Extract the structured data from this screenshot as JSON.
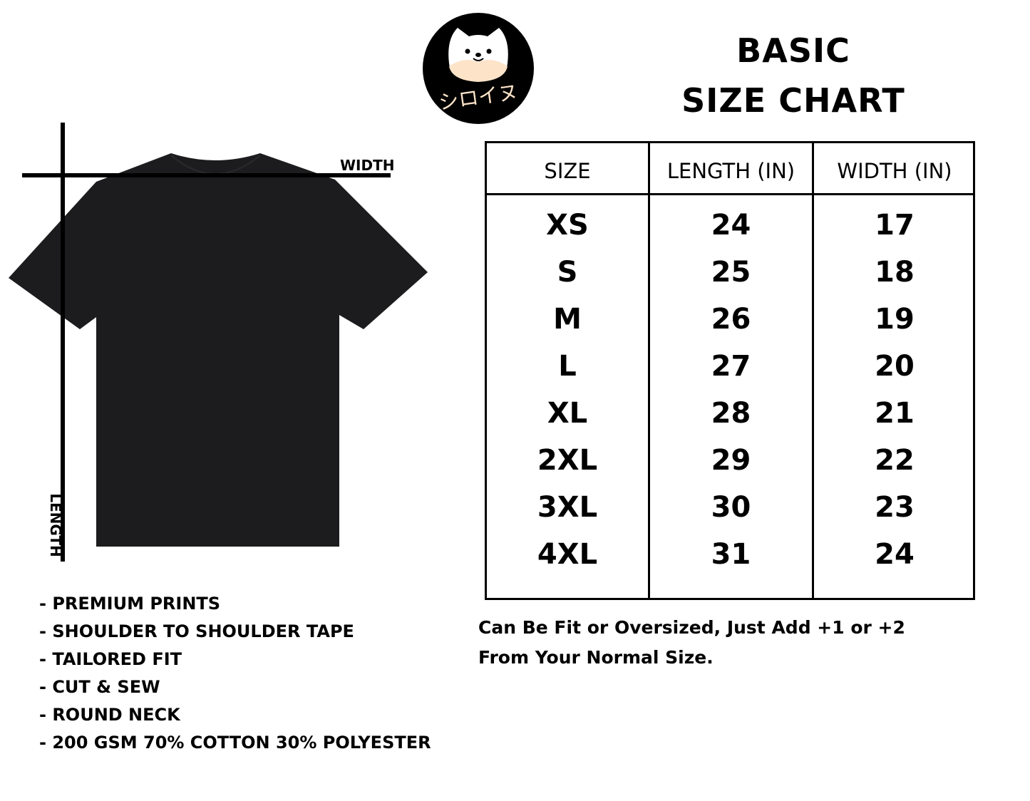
{
  "brand": {
    "logo_text": "シロイヌ",
    "logo_icon": "dog-face-icon"
  },
  "title": {
    "line1": "BASIC",
    "line2": "SIZE CHART"
  },
  "diagram": {
    "width_label": "WIDTH",
    "length_label": "LENGTH",
    "shirt_color": "#1c1c1e"
  },
  "table": {
    "headers": [
      "SIZE",
      "LENGTH (IN)",
      "WIDTH (IN)"
    ],
    "rows": [
      [
        "XS",
        "24",
        "17"
      ],
      [
        "S",
        "25",
        "18"
      ],
      [
        "M",
        "26",
        "19"
      ],
      [
        "L",
        "27",
        "20"
      ],
      [
        "XL",
        "28",
        "21"
      ],
      [
        "2XL",
        "29",
        "22"
      ],
      [
        "3XL",
        "30",
        "23"
      ],
      [
        "4XL",
        "31",
        "24"
      ]
    ]
  },
  "note": {
    "line1": "Can Be Fit or Oversized, Just Add +1 or +2",
    "line2": "From Your Normal Size."
  },
  "features": [
    "- PREMIUM PRINTS",
    "- SHOULDER TO SHOULDER TAPE",
    "- TAILORED FIT",
    "- CUT & SEW",
    "- ROUND NECK",
    "- 200 GSM 70% COTTON 30% POLYESTER"
  ]
}
